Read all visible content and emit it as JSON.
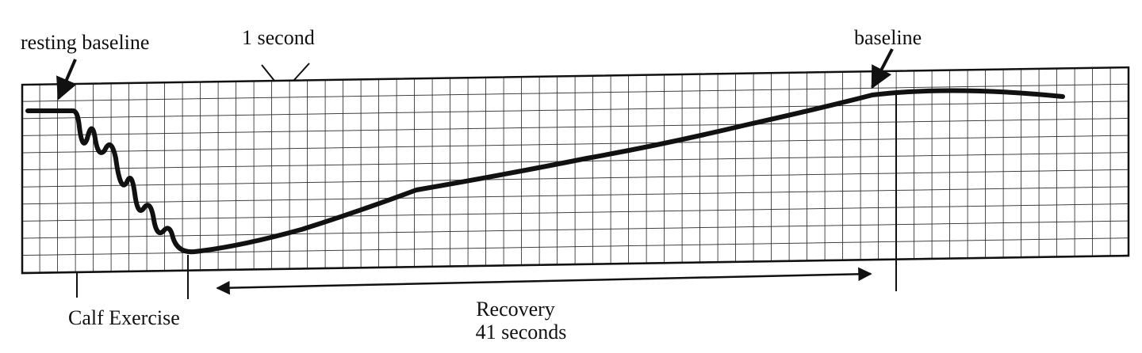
{
  "labels": {
    "resting_baseline": "resting baseline",
    "one_second": "1 second",
    "baseline": "baseline",
    "calf_exercise": "Calf Exercise",
    "recovery": "Recovery",
    "recovery_duration": "41 seconds"
  }
}
